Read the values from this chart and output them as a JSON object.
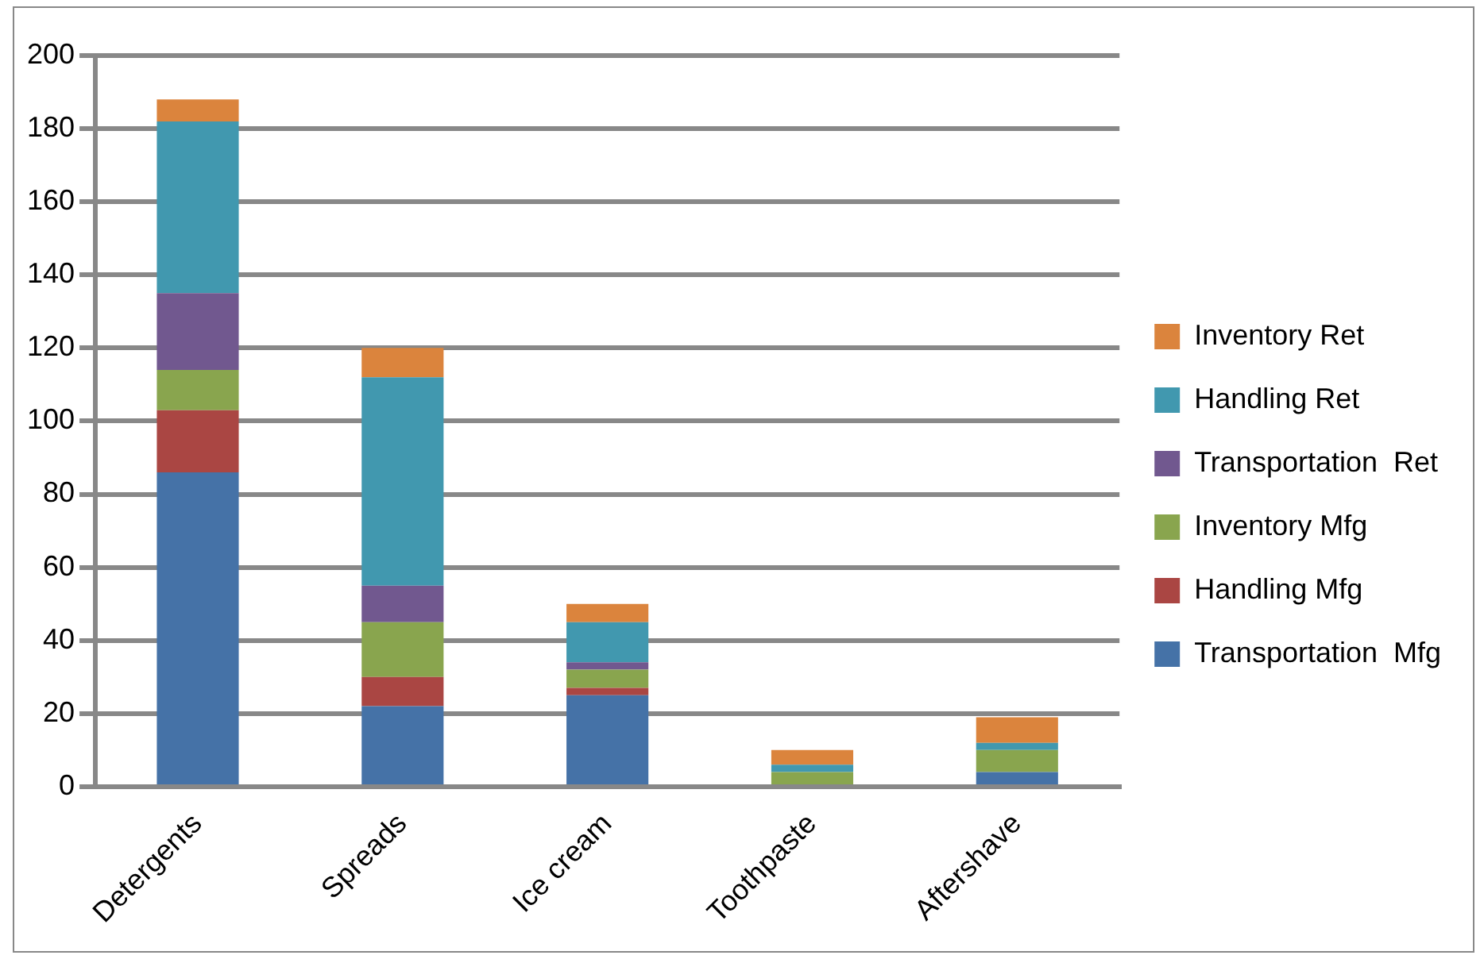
{
  "chart_data": {
    "type": "bar",
    "stacked": true,
    "categories": [
      "Detergents",
      "Spreads",
      "Ice cream",
      "Toothpaste",
      "Aftershave"
    ],
    "series": [
      {
        "name": "Transportation  Mfg",
        "color": "#4572a7",
        "values": [
          86,
          22,
          25,
          0,
          4
        ]
      },
      {
        "name": "Handling Mfg",
        "color": "#aa4643",
        "values": [
          17,
          8,
          2,
          0,
          0
        ]
      },
      {
        "name": "Inventory Mfg",
        "color": "#89a54e",
        "values": [
          11,
          15,
          5,
          4,
          6
        ]
      },
      {
        "name": "Transportation  Ret",
        "color": "#71588f",
        "values": [
          21,
          10,
          2,
          0,
          0
        ]
      },
      {
        "name": "Handling Ret",
        "color": "#4198af",
        "values": [
          47,
          57,
          11,
          2,
          2
        ]
      },
      {
        "name": "Inventory Ret",
        "color": "#db843d",
        "values": [
          6,
          8,
          5,
          4,
          7
        ]
      }
    ],
    "ylim": [
      0,
      200
    ],
    "yticks": [
      0,
      20,
      40,
      60,
      80,
      100,
      120,
      140,
      160,
      180,
      200
    ],
    "grid": "y",
    "legend": "right"
  }
}
